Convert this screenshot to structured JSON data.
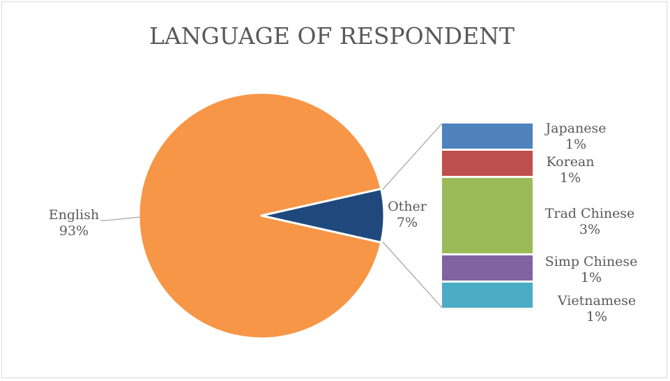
{
  "chart_data": {
    "type": "pie",
    "title": "LANGUAGE OF RESPONDENT",
    "slices": [
      {
        "label": "English",
        "value": 93,
        "display": "93%",
        "color": "#f79646"
      },
      {
        "label": "Other",
        "value": 7,
        "display": "7%",
        "color": "#1f497d"
      }
    ],
    "breakdown_of": "Other",
    "breakdown": [
      {
        "label": "Japanese",
        "value": 1,
        "display": "1%",
        "color": "#4f81bd"
      },
      {
        "label": "Korean",
        "value": 1,
        "display": "1%",
        "color": "#c0504d"
      },
      {
        "label": "Trad Chinese",
        "value": 3,
        "display": "3%",
        "color": "#9bbb59"
      },
      {
        "label": "Simp Chinese",
        "value": 1,
        "display": "1%",
        "color": "#8064a2"
      },
      {
        "label": "Vietnamese",
        "value": 1,
        "display": "1%",
        "color": "#4bacc6"
      }
    ]
  }
}
